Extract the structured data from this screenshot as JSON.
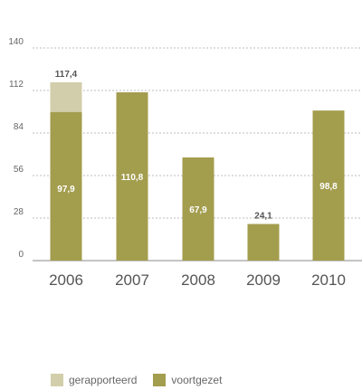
{
  "chart_data": {
    "type": "bar",
    "categories": [
      "2006",
      "2007",
      "2008",
      "2009",
      "2010"
    ],
    "series": [
      {
        "name": "voortgezet",
        "color": "#a39d4e",
        "values": [
          97.9,
          110.8,
          67.9,
          24.1,
          98.8
        ],
        "labels": [
          "97,9",
          "110,8",
          "67,9",
          "24,1",
          "98,8"
        ]
      },
      {
        "name": "gerapporteerd",
        "color": "#d2ceab",
        "values": [
          19.5,
          0,
          0,
          0,
          0
        ],
        "total_label": "117,4"
      }
    ],
    "yticks": [
      "0",
      "28",
      "56",
      "84",
      "112",
      "140"
    ],
    "ylim": [
      0,
      140
    ],
    "grid": true,
    "legend_position": "bottom-left"
  },
  "legend": [
    {
      "label": "gerapporteerd",
      "color": "#d2ceab"
    },
    {
      "label": "voortgezet",
      "color": "#a39d4e"
    }
  ]
}
